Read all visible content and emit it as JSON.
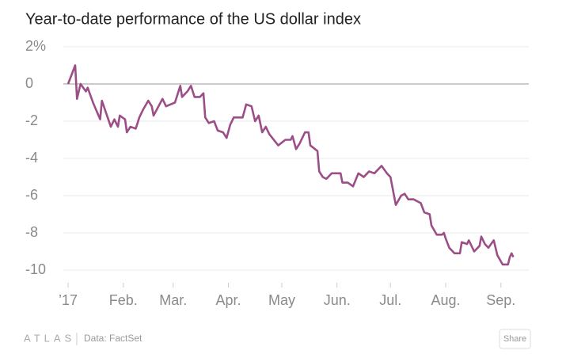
{
  "chart_data": {
    "type": "line",
    "title": "Year-to-date performance of the US dollar index",
    "source": "Data: FactSet",
    "brand": "ATLAS",
    "share": "Share",
    "color": "#9c4e86",
    "grid": true,
    "x": [
      0,
      4,
      5,
      7,
      10,
      11,
      14,
      18,
      19,
      24,
      26,
      28,
      29,
      32,
      33,
      35,
      38,
      40,
      42,
      45,
      47,
      48,
      53,
      55,
      60,
      63,
      64,
      67,
      69,
      71,
      74,
      76,
      77,
      79,
      82,
      84,
      87,
      89,
      91,
      93,
      98,
      100,
      103,
      105,
      107,
      109,
      111,
      113,
      118,
      122,
      125,
      126,
      128,
      130,
      133,
      135,
      136,
      140,
      141,
      143,
      145,
      148,
      151,
      153,
      154,
      157,
      160,
      163,
      166,
      169,
      172,
      176,
      179,
      181,
      184,
      187,
      189,
      191,
      194,
      198,
      200,
      203,
      204,
      207,
      210,
      211,
      212,
      214,
      217,
      220,
      221,
      224,
      225,
      228,
      231,
      232,
      234,
      236,
      239,
      241,
      244,
      247,
      248,
      249,
      250
    ],
    "series": [
      {
        "name": "US dollar index",
        "color": "#9c4e86",
        "values": [
          0,
          1.0,
          -0.8,
          0,
          -0.4,
          -0.2,
          -1.0,
          -1.9,
          -0.9,
          -2.3,
          -1.9,
          -2.3,
          -1.7,
          -1.9,
          -2.6,
          -2.3,
          -2.4,
          -1.8,
          -1.4,
          -0.9,
          -1.2,
          -1.7,
          -0.8,
          -1.2,
          -1.0,
          -0.1,
          -0.7,
          -0.4,
          -0.1,
          -0.7,
          -0.7,
          -0.5,
          -1.8,
          -2.1,
          -2.0,
          -2.5,
          -2.6,
          -2.9,
          -2.2,
          -1.8,
          -1.8,
          -1.1,
          -1.2,
          -2.0,
          -1.7,
          -2.6,
          -2.3,
          -2.7,
          -3.3,
          -3.0,
          -3.0,
          -2.8,
          -3.5,
          -3.2,
          -2.6,
          -2.6,
          -3.3,
          -3.6,
          -4.7,
          -5.0,
          -5.1,
          -4.8,
          -4.8,
          -4.8,
          -5.3,
          -5.3,
          -5.5,
          -4.8,
          -5.0,
          -4.7,
          -4.8,
          -4.4,
          -4.8,
          -5.0,
          -6.5,
          -6.0,
          -5.9,
          -6.2,
          -6.2,
          -6.4,
          -6.9,
          -7.0,
          -7.6,
          -8.1,
          -8.1,
          -8.0,
          -8.3,
          -8.8,
          -9.1,
          -9.1,
          -8.5,
          -8.6,
          -8.4,
          -9.0,
          -8.7,
          -8.2,
          -8.6,
          -8.8,
          -8.4,
          -9.2,
          -9.7,
          -9.7,
          -9.3,
          -9.1,
          -9.3
        ]
      }
    ],
    "xlim": [
      -2,
      258
    ],
    "xticks": [
      {
        "value": 0,
        "label": "’17"
      },
      {
        "value": 31,
        "label": "Feb."
      },
      {
        "value": 59,
        "label": "Mar."
      },
      {
        "value": 90,
        "label": "Apr."
      },
      {
        "value": 120,
        "label": "May"
      },
      {
        "value": 151,
        "label": "Jun."
      },
      {
        "value": 181,
        "label": "Jul."
      },
      {
        "value": 212,
        "label": "Aug."
      },
      {
        "value": 243,
        "label": "Sep."
      }
    ],
    "ylim": [
      -10.6,
      2.4
    ],
    "yticks": [
      {
        "value": 2,
        "label": "2%"
      },
      0,
      -2,
      -4,
      -6,
      -8,
      -10
    ]
  }
}
